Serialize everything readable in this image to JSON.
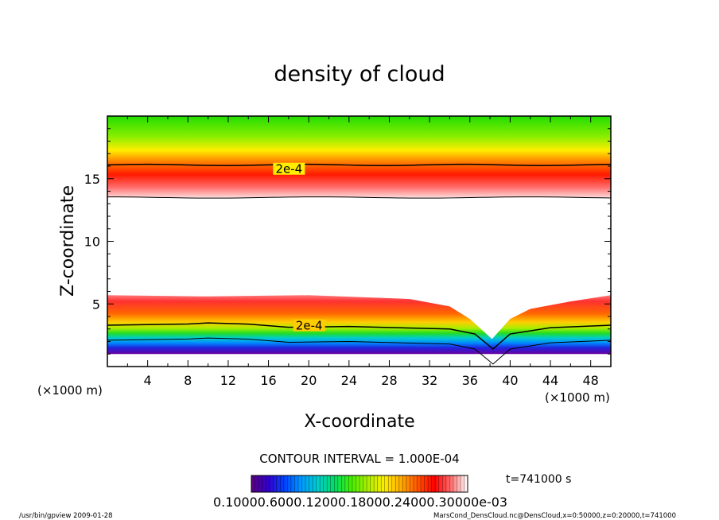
{
  "footer": {
    "left": "/usr/bin/gpview  2009-01-28",
    "right": "MarsCond_DensCloud.nc@DensCloud,x=0:50000,z=0:20000,t=741000"
  },
  "chart_data": {
    "type": "heatmap",
    "title": "density of cloud",
    "xlabel": "X-coordinate",
    "ylabel": "Z-coordinate",
    "x_unit_label_left": "(×1000 m)",
    "x_unit_label_right": "(×1000 m)",
    "xlim": [
      0,
      50
    ],
    "ylim": [
      0,
      20
    ],
    "x_ticks": [
      4,
      8,
      12,
      16,
      20,
      24,
      28,
      32,
      36,
      40,
      44,
      48
    ],
    "y_ticks": [
      5,
      10,
      15
    ],
    "contour_interval_label": "CONTOUR INTERVAL = 1.000E-04",
    "time_label": "t=741000 s",
    "colorbar_tick_labels": "0.10000.6000.12000.18000.24000.30000e-03",
    "contour_labels": [
      {
        "text": "2e-4",
        "x": 17.8,
        "z": 15.7
      },
      {
        "text": "2e-4",
        "x": 19.8,
        "z": 3.2
      }
    ],
    "upper_band": {
      "z_top": 20,
      "z_red_peak": 14.5,
      "z_bottom": 13.5,
      "contour_2e4_z": 16.1
    },
    "lower_band": {
      "z_top_profile": [
        [
          0,
          5.7
        ],
        [
          10,
          5.6
        ],
        [
          20,
          5.7
        ],
        [
          30,
          5.4
        ],
        [
          34,
          4.8
        ],
        [
          36,
          3.8
        ],
        [
          38.2,
          2.2
        ],
        [
          40,
          3.8
        ],
        [
          42,
          4.6
        ],
        [
          46,
          5.2
        ],
        [
          50,
          5.7
        ]
      ],
      "contour_2e4_profile": [
        [
          0,
          3.3
        ],
        [
          8,
          3.4
        ],
        [
          10,
          3.6
        ],
        [
          14,
          3.5
        ],
        [
          18,
          3.2
        ],
        [
          24,
          3.2
        ],
        [
          34,
          3.0
        ],
        [
          36.5,
          2.6
        ],
        [
          38.3,
          1.4
        ],
        [
          40,
          2.6
        ],
        [
          44,
          3.1
        ],
        [
          50,
          3.3
        ]
      ],
      "z_bottom": 1.0
    },
    "colormap": [
      "#5a0080",
      "#3300cc",
      "#0044ff",
      "#0099ff",
      "#00cccc",
      "#00dd66",
      "#44ee00",
      "#aaee00",
      "#ffee00",
      "#ffaa00",
      "#ff5500",
      "#ff0000",
      "#ff6f6f",
      "#ffffff"
    ]
  }
}
